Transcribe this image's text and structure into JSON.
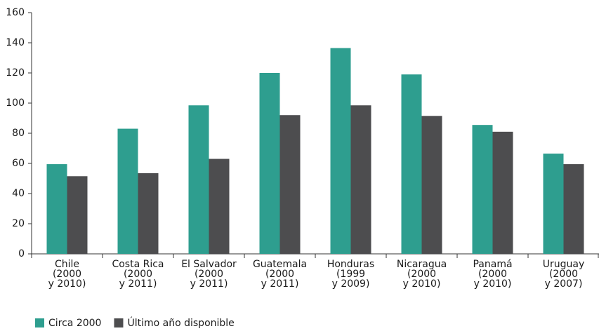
{
  "chart_data": {
    "type": "bar",
    "categories": [
      "Chile\n(2000\ny 2010)",
      "Costa Rica\n(2000\ny 2011)",
      "El Salvador\n(2000\ny 2011)",
      "Guatemala\n(2000\ny 2011)",
      "Honduras\n(1999\ny 2009)",
      "Nicaragua\n(2000\ny 2010)",
      "Panamá\n(2000\ny 2010)",
      "Uruguay\n(2000\ny 2007)"
    ],
    "series": [
      {
        "name": "Circa 2000",
        "color": "#2e9e8f",
        "values": [
          59.5,
          83,
          98.5,
          120,
          136.5,
          119,
          85.5,
          66.5
        ]
      },
      {
        "name": "Último año disponible",
        "color": "#4d4d4f",
        "values": [
          51.5,
          53.5,
          63,
          92,
          98.5,
          91.5,
          81,
          59.5
        ]
      }
    ],
    "ylim": [
      0,
      160
    ],
    "yticks": [
      0,
      20,
      40,
      60,
      80,
      100,
      120,
      140,
      160
    ],
    "grid": false,
    "legend": "bottom-left"
  }
}
